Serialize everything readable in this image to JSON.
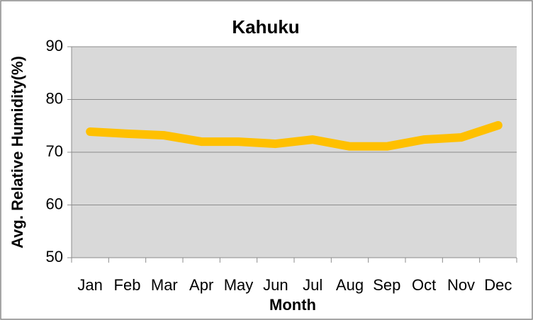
{
  "chart_data": {
    "type": "line",
    "title": "Kahuku",
    "x_label": "Month",
    "y_label": "Avg. Relative Humidity(%)",
    "categories": [
      "Jan",
      "Feb",
      "Mar",
      "Apr",
      "May",
      "Jun",
      "Jul",
      "Aug",
      "Sep",
      "Oct",
      "Nov",
      "Dec"
    ],
    "series": [
      {
        "name": "Avg. Relative Humidity",
        "color": "#ffc000",
        "values": [
          73.9,
          73.5,
          73.2,
          72.0,
          72.0,
          71.6,
          72.4,
          71.1,
          71.1,
          72.4,
          72.8,
          75.1
        ]
      }
    ],
    "ylim": [
      50,
      90
    ],
    "yticks": [
      50,
      60,
      70,
      80,
      90
    ],
    "grid": true,
    "legend": false
  }
}
